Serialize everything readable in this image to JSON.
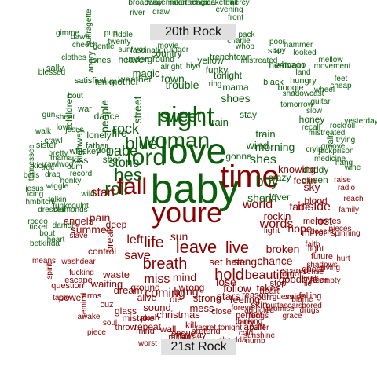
{
  "labels": {
    "top": "20th Rock",
    "bottom": "21st Rock"
  },
  "colors": {
    "green": "#0a5e0a",
    "red": "#8b0000",
    "label_bg": "#e0e0e0"
  },
  "words": [
    {
      "text": "baby",
      "c": "green"
    },
    {
      "text": "love",
      "c": "green"
    },
    {
      "text": "night",
      "c": "green"
    },
    {
      "text": "youre",
      "c": "red"
    },
    {
      "text": "time",
      "c": "red"
    },
    {
      "text": "woman",
      "c": "green"
    },
    {
      "text": "lord",
      "c": "green"
    },
    {
      "text": "roll",
      "c": "green"
    },
    {
      "text": "fall",
      "c": "red"
    },
    {
      "text": "blue",
      "c": "green"
    },
    {
      "text": "rock",
      "c": "green"
    },
    {
      "text": "life",
      "c": "red"
    },
    {
      "text": "leave",
      "c": "red"
    },
    {
      "text": "breath",
      "c": "red"
    },
    {
      "text": "live",
      "c": "red"
    },
    {
      "text": "hold",
      "c": "red"
    },
    {
      "text": "beautiful",
      "c": "red"
    },
    {
      "text": "world",
      "c": "red"
    },
    {
      "text": "inside",
      "c": "red"
    },
    {
      "text": "words",
      "c": "red"
    },
    {
      "text": "miss",
      "c": "red"
    },
    {
      "text": "coming",
      "c": "red"
    },
    {
      "text": "save",
      "c": "red"
    },
    {
      "text": "left",
      "c": "red"
    },
    {
      "text": "hes",
      "c": "green"
    },
    {
      "text": "shes",
      "c": "green"
    },
    {
      "text": "boy",
      "c": "green"
    },
    {
      "text": "sweet",
      "c": "green"
    },
    {
      "text": "stone",
      "c": "green"
    },
    {
      "text": "people",
      "c": "green"
    },
    {
      "text": "street",
      "c": "green"
    },
    {
      "text": "hope",
      "c": "red"
    },
    {
      "text": "lost",
      "c": "red"
    },
    {
      "text": "start",
      "c": "red"
    },
    {
      "text": "pain",
      "c": "red"
    },
    {
      "text": "chance",
      "c": "red"
    },
    {
      "text": "song",
      "c": "red"
    },
    {
      "text": "broken",
      "c": "red"
    },
    {
      "text": "fade",
      "c": "red"
    },
    {
      "text": "sun",
      "c": "red"
    },
    {
      "text": "mind",
      "c": "red"
    },
    {
      "text": "waste",
      "c": "red"
    },
    {
      "text": "feeling",
      "c": "red"
    },
    {
      "text": "follow",
      "c": "red"
    },
    {
      "text": "hate",
      "c": "red"
    },
    {
      "text": "set",
      "c": "red"
    },
    {
      "text": "waiting",
      "c": "red"
    },
    {
      "text": "trouble",
      "c": "green"
    },
    {
      "text": "wind",
      "c": "green"
    },
    {
      "text": "honey",
      "c": "green"
    },
    {
      "text": "morning",
      "c": "green"
    },
    {
      "text": "train",
      "c": "green"
    },
    {
      "text": "mama",
      "c": "green"
    },
    {
      "text": "tonight",
      "c": "green"
    },
    {
      "text": "lonely",
      "c": "green"
    },
    {
      "text": "fire",
      "c": "green"
    },
    {
      "text": "whiskey",
      "c": "green"
    },
    {
      "text": "town",
      "c": "green"
    },
    {
      "text": "father",
      "c": "green"
    },
    {
      "text": "sister",
      "c": "green"
    },
    {
      "text": "mother",
      "c": "green"
    },
    {
      "text": "dance",
      "c": "green"
    },
    {
      "text": "country",
      "c": "green"
    },
    {
      "text": "heaven",
      "c": "green"
    },
    {
      "text": "shoes",
      "c": "green"
    },
    {
      "text": "jesus",
      "c": "green"
    },
    {
      "text": "magic",
      "c": "green"
    },
    {
      "text": "rain",
      "c": "green"
    },
    {
      "text": "highway",
      "c": "green"
    },
    {
      "text": "children",
      "c": "green"
    },
    {
      "text": "babe",
      "c": "green"
    },
    {
      "text": "queen",
      "c": "green"
    },
    {
      "text": "daddy",
      "c": "green"
    },
    {
      "text": "gonna",
      "c": "green"
    },
    {
      "text": "funky",
      "c": "green"
    },
    {
      "text": "bring",
      "c": "red"
    },
    {
      "text": "stars",
      "c": "red"
    },
    {
      "text": "control",
      "c": "red"
    },
    {
      "text": "summer",
      "c": "red"
    },
    {
      "text": "angels",
      "c": "red"
    },
    {
      "text": "memories",
      "c": "red"
    },
    {
      "text": "dream",
      "c": "red"
    },
    {
      "text": "alive",
      "c": "red"
    },
    {
      "text": "ground",
      "c": "red"
    },
    {
      "text": "lose",
      "c": "red"
    },
    {
      "text": "takes",
      "c": "red"
    },
    {
      "text": "goodbye",
      "c": "red"
    },
    {
      "text": "falling",
      "c": "red"
    },
    {
      "text": "escape",
      "c": "red"
    },
    {
      "text": "power",
      "c": "red"
    },
    {
      "text": "question",
      "c": "red"
    },
    {
      "text": "arms",
      "c": "red"
    },
    {
      "text": "break",
      "c": "red"
    },
    {
      "text": "deep",
      "c": "red"
    },
    {
      "text": "blood",
      "c": "red"
    },
    {
      "text": "mirror",
      "c": "red"
    },
    {
      "text": "future",
      "c": "red"
    },
    {
      "text": "forgot",
      "c": "red"
    },
    {
      "text": "scared",
      "c": "red"
    },
    {
      "text": "ghost",
      "c": "red"
    },
    {
      "text": "sky",
      "c": "red"
    },
    {
      "text": "burn",
      "c": "red"
    },
    {
      "text": "light",
      "c": "red"
    },
    {
      "text": "die",
      "c": "red"
    },
    {
      "text": "fight",
      "c": "red"
    },
    {
      "text": "heart",
      "c": "red"
    },
    {
      "text": "hear",
      "c": "red"
    },
    {
      "text": "skin",
      "c": "red"
    },
    {
      "text": "stop",
      "c": "red"
    },
    {
      "text": "reason",
      "c": "red"
    },
    {
      "text": "apart",
      "c": "red"
    },
    {
      "text": "perfect",
      "c": "red"
    },
    {
      "text": "close",
      "c": "red"
    },
    {
      "text": "carry",
      "c": "red"
    },
    {
      "text": "christmas",
      "c": "red"
    },
    {
      "text": "mess",
      "c": "red"
    },
    {
      "text": "strong",
      "c": "red"
    },
    {
      "text": "wrong",
      "c": "red"
    },
    {
      "text": "sound",
      "c": "red"
    },
    {
      "text": "push",
      "c": "red"
    },
    {
      "text": "wall",
      "c": "red"
    },
    {
      "text": "mistake",
      "c": "red"
    },
    {
      "text": "cuz",
      "c": "red"
    },
    {
      "text": "glass",
      "c": "red"
    },
    {
      "text": "throw",
      "c": "red"
    },
    {
      "text": "repeat",
      "c": "red"
    },
    {
      "text": "kill",
      "c": "red"
    },
    {
      "text": "million",
      "c": "red"
    },
    {
      "text": "everyday",
      "c": "red"
    },
    {
      "text": "tongue",
      "c": "red"
    },
    {
      "text": "pretend",
      "c": "red"
    },
    {
      "text": "regret",
      "c": "red"
    },
    {
      "text": "stuck",
      "c": "red"
    },
    {
      "text": "cold",
      "c": "red"
    },
    {
      "text": "mind",
      "c": "red"
    },
    {
      "text": "worst",
      "c": "red"
    },
    {
      "text": "soul",
      "c": "red"
    },
    {
      "text": "awake",
      "c": "red"
    },
    {
      "text": "remind",
      "c": "red"
    },
    {
      "text": "taste",
      "c": "red"
    },
    {
      "text": "piece",
      "c": "red"
    },
    {
      "text": "promise",
      "c": "red"
    },
    {
      "text": "numb",
      "c": "red"
    },
    {
      "text": "lungs",
      "c": "red"
    },
    {
      "text": "sunshine",
      "c": "red"
    },
    {
      "text": "thinking",
      "c": "red"
    },
    {
      "text": "tonight",
      "c": "red"
    },
    {
      "text": "forever",
      "c": "red"
    },
    {
      "text": "shoulda",
      "c": "red"
    },
    {
      "text": "suffer",
      "c": "red"
    },
    {
      "text": "addicted",
      "c": "red"
    },
    {
      "text": "praise",
      "c": "red"
    },
    {
      "text": "melt",
      "c": "red"
    },
    {
      "text": "guess",
      "c": "red"
    },
    {
      "text": "grace",
      "c": "red"
    },
    {
      "text": "empty",
      "c": "red"
    },
    {
      "text": "blame",
      "c": "red"
    },
    {
      "text": "bored",
      "c": "red"
    },
    {
      "text": "outtascars",
      "c": "red"
    },
    {
      "text": "drugs",
      "c": "red"
    },
    {
      "text": "shadows",
      "c": "red"
    },
    {
      "text": "sense",
      "c": "red"
    },
    {
      "text": "lie",
      "c": "red"
    },
    {
      "text": "giving",
      "c": "red"
    },
    {
      "text": "hurt",
      "c": "red"
    },
    {
      "text": "faith",
      "c": "red"
    },
    {
      "text": "doesnt",
      "c": "red"
    },
    {
      "text": "pieces",
      "c": "red"
    },
    {
      "text": "reach",
      "c": "red"
    },
    {
      "text": "spinning",
      "c": "red"
    },
    {
      "text": "family",
      "c": "red"
    },
    {
      "text": "raise",
      "c": "red"
    },
    {
      "text": "radio",
      "c": "red"
    },
    {
      "text": "feelin",
      "c": "red"
    },
    {
      "text": "knowing",
      "c": "red"
    },
    {
      "text": "rockin",
      "c": "red"
    },
    {
      "text": "sheriff",
      "c": "green"
    },
    {
      "text": "stay",
      "c": "green"
    },
    {
      "text": "lover",
      "c": "green"
    },
    {
      "text": "crazy",
      "c": "green"
    },
    {
      "text": "dog",
      "c": "green"
    },
    {
      "text": "kiss",
      "c": "green"
    },
    {
      "text": "shot",
      "c": "green"
    },
    {
      "text": "war",
      "c": "green"
    },
    {
      "text": "gun",
      "c": "green"
    },
    {
      "text": "sheet",
      "c": "green"
    },
    {
      "text": "bout",
      "c": "green"
    },
    {
      "text": "blessed",
      "c": "green"
    },
    {
      "text": "clothes",
      "c": "green"
    },
    {
      "text": "sally",
      "c": "green"
    },
    {
      "text": "jones",
      "c": "green"
    },
    {
      "text": "angry",
      "c": "green"
    },
    {
      "text": "satisfied",
      "c": "green"
    },
    {
      "text": "gentle",
      "c": "green"
    },
    {
      "text": "weather",
      "c": "green"
    },
    {
      "text": "underground",
      "c": "green"
    },
    {
      "text": "movie",
      "c": "green"
    },
    {
      "text": "yellow",
      "c": "green"
    },
    {
      "text": "funky",
      "c": "green"
    },
    {
      "text": "whoaoo",
      "c": "green"
    },
    {
      "text": "boogie",
      "c": "green"
    },
    {
      "text": "heatvain",
      "c": "green"
    },
    {
      "text": "star",
      "c": "green"
    },
    {
      "text": "black",
      "c": "green"
    },
    {
      "text": "hungry",
      "c": "green"
    },
    {
      "text": "wheel",
      "c": "green"
    },
    {
      "text": "mellow",
      "c": "green"
    },
    {
      "text": "movement",
      "c": "green"
    },
    {
      "text": "mistreated",
      "c": "green"
    },
    {
      "text": "broadway",
      "c": "green"
    },
    {
      "text": "peacemaker",
      "c": "green"
    },
    {
      "text": "heartache",
      "c": "green"
    },
    {
      "text": "magica",
      "c": "green"
    },
    {
      "text": "basketball",
      "c": "green"
    },
    {
      "text": "evening",
      "c": "green"
    },
    {
      "text": "mercy",
      "c": "green"
    },
    {
      "text": "front",
      "c": "green"
    },
    {
      "text": "river",
      "c": "green"
    },
    {
      "text": "draw",
      "c": "green"
    },
    {
      "text": "singin",
      "c": "green"
    },
    {
      "text": "fiddle",
      "c": "green"
    },
    {
      "text": "pup",
      "c": "green"
    },
    {
      "text": "suffragette",
      "c": "green"
    },
    {
      "text": "gimme",
      "c": "green"
    },
    {
      "text": "dawn",
      "c": "green"
    },
    {
      "text": "cheech",
      "c": "green"
    },
    {
      "text": "twenty",
      "c": "green"
    },
    {
      "text": "survivor",
      "c": "green"
    },
    {
      "text": "fascination",
      "c": "green"
    },
    {
      "text": "linger",
      "c": "green"
    },
    {
      "text": "alright",
      "c": "green"
    },
    {
      "text": "hiyo",
      "c": "green"
    },
    {
      "text": "ring",
      "c": "green"
    },
    {
      "text": "pack",
      "c": "green"
    },
    {
      "text": "whop",
      "c": "green"
    },
    {
      "text": "charlie",
      "c": "green"
    },
    {
      "text": "trenchtown",
      "c": "green"
    },
    {
      "text": "spy",
      "c": "green"
    },
    {
      "text": "poor",
      "c": "green"
    },
    {
      "text": "hammer",
      "c": "green"
    },
    {
      "text": "looked",
      "c": "green"
    },
    {
      "text": "land",
      "c": "green"
    },
    {
      "text": "cheap",
      "c": "green"
    },
    {
      "text": "feet",
      "c": "green"
    },
    {
      "text": "shadowcast",
      "c": "green"
    },
    {
      "text": "guitar",
      "c": "green"
    },
    {
      "text": "slow",
      "c": "green"
    },
    {
      "text": "tomorrow",
      "c": "green"
    },
    {
      "text": "mistreated",
      "c": "green"
    },
    {
      "text": "rockroll",
      "c": "green"
    },
    {
      "text": "yesterday",
      "c": "green"
    },
    {
      "text": "recall",
      "c": "green"
    },
    {
      "text": "cryin",
      "c": "green"
    },
    {
      "text": "rain",
      "c": "green"
    },
    {
      "text": "trying",
      "c": "green"
    },
    {
      "text": "medicine",
      "c": "green"
    },
    {
      "text": "jackprison",
      "c": "green"
    },
    {
      "text": "hang",
      "c": "green"
    },
    {
      "text": "wine",
      "c": "green"
    },
    {
      "text": "groove",
      "c": "green"
    },
    {
      "text": "rawlwoo",
      "c": "green"
    },
    {
      "text": "lovin",
      "c": "green"
    },
    {
      "text": "honky",
      "c": "green"
    },
    {
      "text": "funkcoulnt",
      "c": "green"
    },
    {
      "text": "wild",
      "c": "green"
    },
    {
      "text": "bum",
      "c": "green"
    },
    {
      "text": "pretty",
      "c": "green"
    },
    {
      "text": "mama",
      "c": "green"
    },
    {
      "text": "tennessee",
      "c": "green"
    },
    {
      "text": "true",
      "c": "green"
    },
    {
      "text": "bells",
      "c": "green"
    },
    {
      "text": "jesus",
      "c": "green"
    },
    {
      "text": "wiggle",
      "c": "green"
    },
    {
      "text": "record",
      "c": "green"
    },
    {
      "text": "icing",
      "c": "green"
    },
    {
      "text": "kick",
      "c": "green"
    },
    {
      "text": "crawl",
      "c": "green"
    },
    {
      "text": "walk",
      "c": "green"
    },
    {
      "text": "drag",
      "c": "green"
    },
    {
      "text": "talkin",
      "c": "green"
    },
    {
      "text": "hmbitch",
      "c": "green"
    },
    {
      "text": "dressed",
      "c": "green"
    },
    {
      "text": "diamonds",
      "c": "green"
    },
    {
      "text": "rodeo",
      "c": "green"
    },
    {
      "text": "heart",
      "c": "green"
    },
    {
      "text": "bet",
      "c": "green"
    },
    {
      "text": "daniel",
      "c": "green"
    },
    {
      "text": "bout",
      "c": "green"
    },
    {
      "text": "kinda",
      "c": "green"
    },
    {
      "text": "ticket",
      "c": "green"
    },
    {
      "text": "slave",
      "c": "red"
    },
    {
      "text": "means",
      "c": "red"
    },
    {
      "text": "spirit",
      "c": "red"
    },
    {
      "text": "fucking",
      "c": "red"
    },
    {
      "text": "washdear",
      "c": "red"
    },
    {
      "text": "head",
      "c": "red"
    },
    {
      "text": "touch",
      "c": "red"
    },
    {
      "text": "watch",
      "c": "red"
    },
    {
      "text": "silence",
      "c": "red"
    },
    {
      "text": "makes",
      "c": "red"
    },
    {
      "text": "mess",
      "c": "red"
    },
    {
      "text": "pill",
      "c": "red"
    },
    {
      "text": "slug",
      "c": "red"
    },
    {
      "text": "sink",
      "c": "red"
    },
    {
      "text": "sound",
      "c": "red"
    },
    {
      "text": "comfort",
      "c": "red"
    },
    {
      "text": "piss",
      "c": "red"
    },
    {
      "text": "history",
      "c": "red"
    },
    {
      "text": "change",
      "c": "red"
    },
    {
      "text": "forever",
      "c": "red"
    },
    {
      "text": "space",
      "c": "red"
    },
    {
      "text": "tonight",
      "c": "red"
    },
    {
      "text": "stupid",
      "c": "red"
    },
    {
      "text": "thinking",
      "c": "red"
    },
    {
      "text": "sunshine",
      "c": "red"
    }
  ]
}
